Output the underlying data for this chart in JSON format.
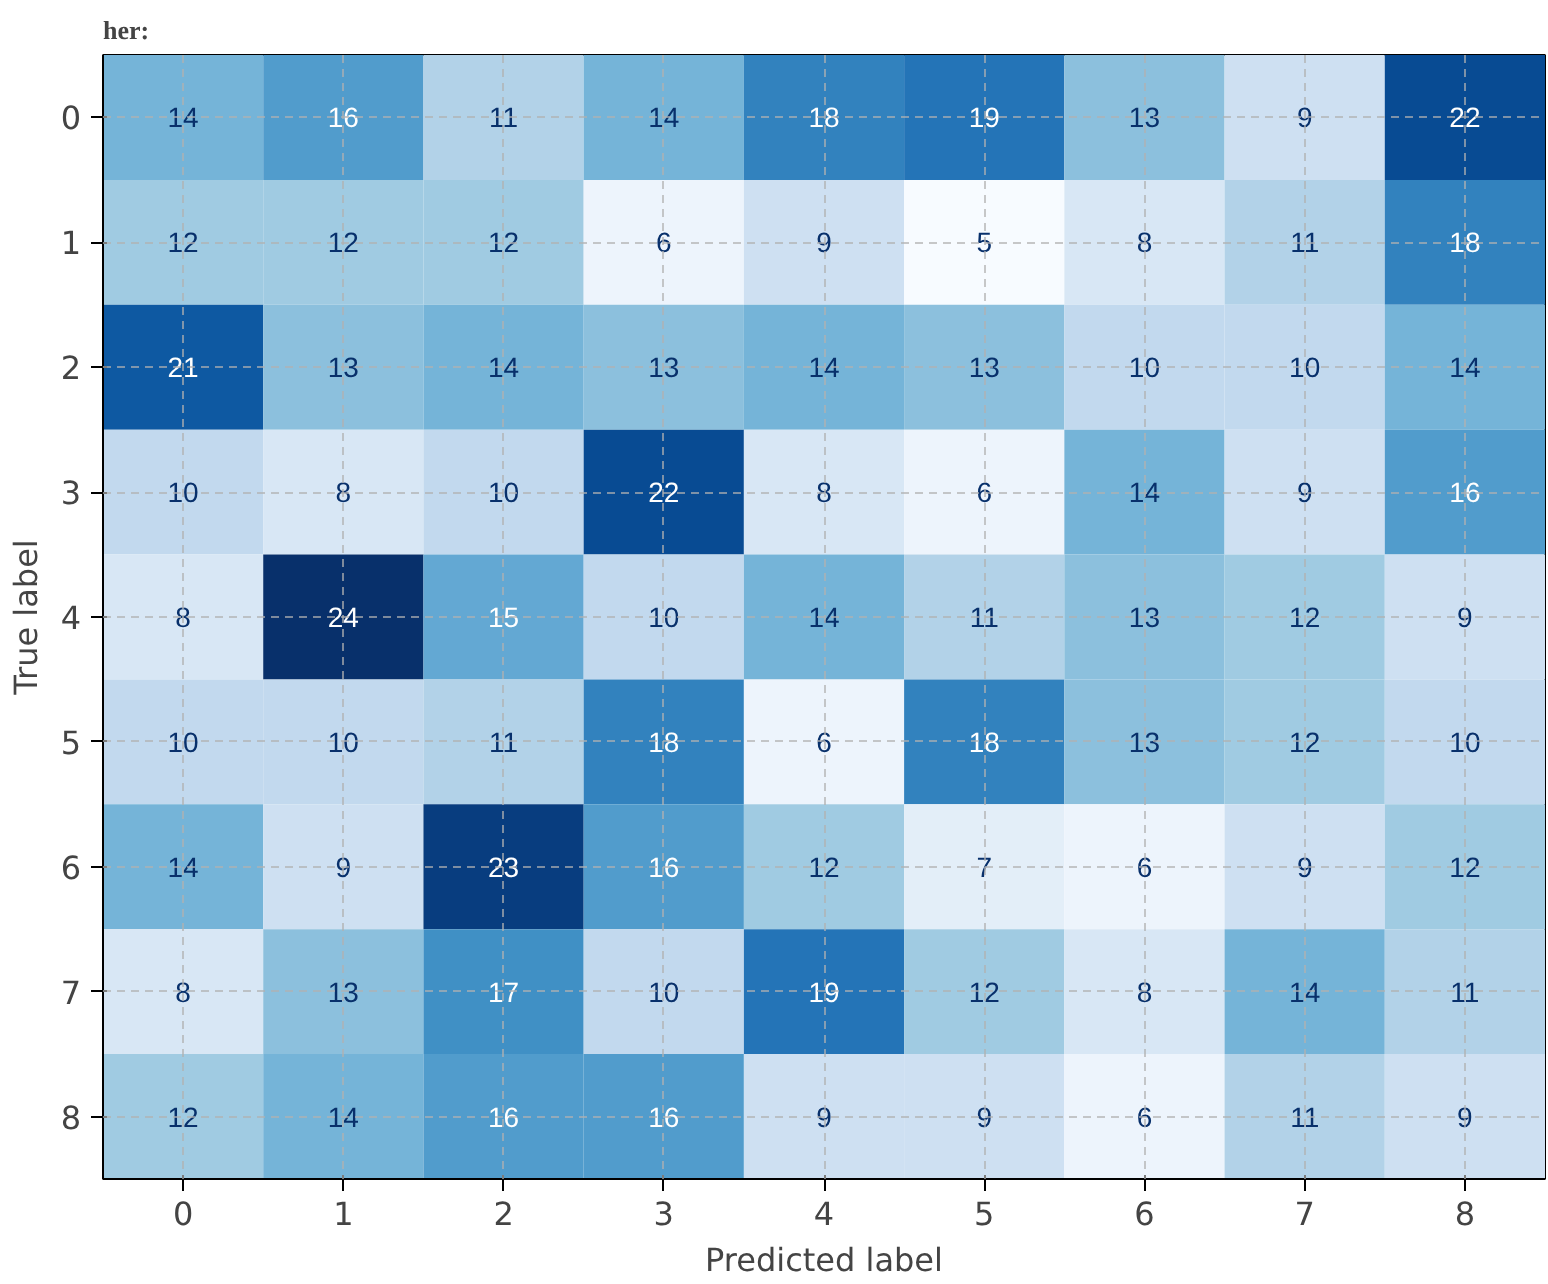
{
  "chart_data": {
    "type": "heatmap",
    "xlabel": "Predicted label",
    "ylabel": "True label",
    "annotations": [
      "her:"
    ],
    "grid": true,
    "data_labels": true,
    "categories": [
      "0",
      "1",
      "2",
      "3",
      "4",
      "5",
      "6",
      "7",
      "8"
    ],
    "y_categories": [
      "0",
      "1",
      "2",
      "3",
      "4",
      "5",
      "6",
      "7",
      "8"
    ],
    "cells": [
      [
        14,
        16,
        11,
        14,
        18,
        19,
        13,
        9,
        22
      ],
      [
        12,
        12,
        12,
        6,
        9,
        5,
        8,
        11,
        18
      ],
      [
        21,
        13,
        14,
        13,
        14,
        13,
        10,
        10,
        14
      ],
      [
        10,
        8,
        10,
        22,
        8,
        6,
        14,
        9,
        16
      ],
      [
        8,
        24,
        15,
        10,
        14,
        11,
        13,
        12,
        9
      ],
      [
        10,
        10,
        11,
        18,
        6,
        18,
        13,
        12,
        10
      ],
      [
        14,
        9,
        23,
        16,
        12,
        7,
        6,
        9,
        12
      ],
      [
        8,
        13,
        17,
        10,
        19,
        12,
        8,
        14,
        11
      ],
      [
        12,
        14,
        16,
        16,
        9,
        9,
        6,
        11,
        9
      ]
    ]
  }
}
